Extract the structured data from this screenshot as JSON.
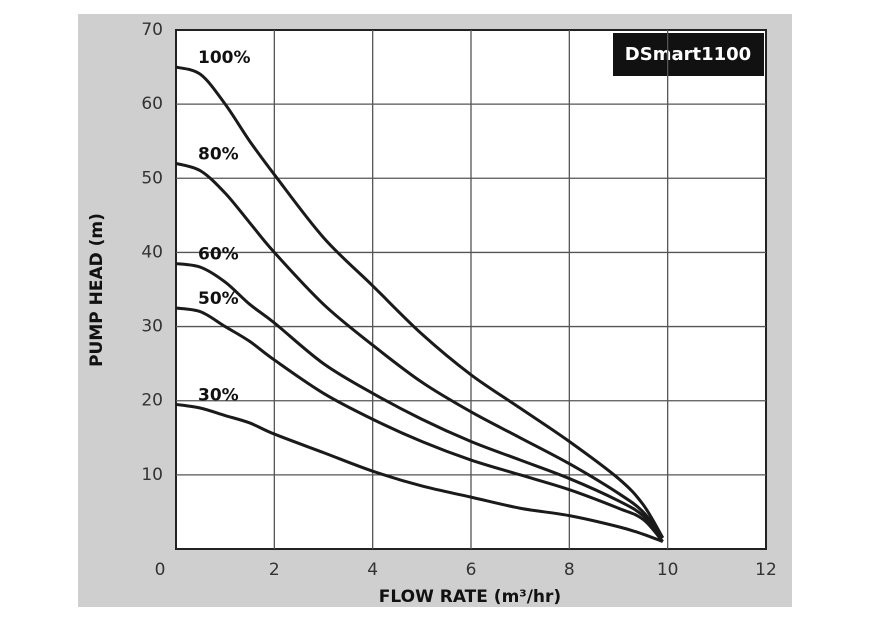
{
  "chart_data": {
    "type": "line",
    "title": "DSmart1100",
    "x_label": "FLOW RATE (m³/hr)",
    "y_label": "PUMP HEAD (m)",
    "x": [
      0,
      0.5,
      1,
      1.5,
      2,
      3,
      4,
      5,
      6,
      7,
      8,
      9,
      9.5,
      9.9
    ],
    "series": [
      {
        "name": "100%",
        "color": "#1a1a1a",
        "values": [
          65,
          64,
          60,
          55,
          50.5,
          42,
          35.5,
          29,
          23.5,
          19,
          14.5,
          9.5,
          6,
          1.5
        ]
      },
      {
        "name": "80%",
        "color": "#1a1a1a",
        "values": [
          52,
          51,
          48,
          44,
          40,
          33,
          27.5,
          22.5,
          18.5,
          15,
          11.5,
          7.5,
          5,
          1.5
        ]
      },
      {
        "name": "60%",
        "color": "#1a1a1a",
        "values": [
          38.5,
          38,
          36,
          33,
          30.5,
          25,
          21,
          17.5,
          14.5,
          12,
          9.5,
          6.5,
          4.5,
          1.5
        ]
      },
      {
        "name": "50%",
        "color": "#1a1a1a",
        "values": [
          32.5,
          32,
          30,
          28,
          25.5,
          21,
          17.5,
          14.5,
          12,
          10,
          8,
          5.5,
          4,
          1
        ]
      },
      {
        "name": "30%",
        "color": "#1a1a1a",
        "values": [
          19.5,
          19,
          18,
          17,
          15.5,
          13,
          10.5,
          8.5,
          7,
          5.5,
          4.5,
          3,
          2,
          1
        ]
      }
    ],
    "xlim": [
      0,
      12
    ],
    "xticks": [
      0,
      2,
      4,
      6,
      8,
      10,
      12
    ],
    "ylim": [
      0,
      70
    ],
    "yticks": [
      10,
      20,
      30,
      40,
      50,
      60,
      70
    ],
    "grid": true
  }
}
